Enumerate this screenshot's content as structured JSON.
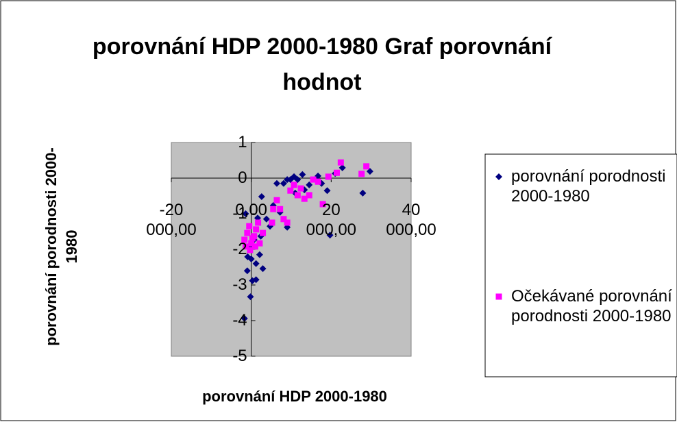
{
  "chart_data": {
    "type": "scatter",
    "title": "porovnání HDP 2000-1980 Graf porovnání hodnot",
    "x_label": "porovnání HDP 2000-1980",
    "y_label": "porovnání porodnosti 2000-1980",
    "xlim": [
      -20000,
      40000
    ],
    "xticks": [
      {
        "value": -20000,
        "label": "-20 000,00"
      },
      {
        "value": 0,
        "label": "0,00"
      },
      {
        "value": 20000,
        "label": "20 000,00"
      },
      {
        "value": 40000,
        "label": "40 000,00"
      }
    ],
    "ylim": [
      -5,
      1
    ],
    "yticks": [
      1,
      0,
      -1,
      -2,
      -3,
      -4,
      -5
    ],
    "legend": "right",
    "series": [
      {
        "name": "porovnání porodnosti 2000-1980",
        "color": "#000080",
        "marker": "diamond",
        "x": [
          -1700,
          -200,
          300,
          -1400,
          -900,
          0,
          1200,
          1200,
          2100,
          2400,
          2900,
          2600,
          1600,
          4700,
          6400,
          8100,
          9000,
          9800,
          10700,
          11600,
          12800,
          11000,
          13300,
          14500,
          16700,
          17600,
          19000,
          19700,
          21000,
          22800,
          27900,
          29700,
          7200,
          9000,
          5500,
          3800,
          700,
          -300,
          -1000
        ],
        "values": [
          -3.94,
          -3.33,
          -2.88,
          -1.0,
          -2.21,
          -2.27,
          -2.4,
          -2.85,
          -2.15,
          -1.63,
          -2.54,
          -0.52,
          -1.12,
          -1.35,
          -0.15,
          -0.15,
          -0.04,
          -0.04,
          0.04,
          -0.04,
          0.1,
          -0.42,
          -0.33,
          -0.19,
          0.06,
          -0.15,
          -0.35,
          -1.6,
          0.13,
          0.29,
          -0.42,
          0.19,
          -0.96,
          -1.38,
          -0.77,
          -1.15,
          -1.73,
          -1.92,
          -2.6
        ]
      },
      {
        "name": "Očekávané porovnání porodnosti 2000-1980",
        "color": "#ff00ff",
        "marker": "square",
        "x": [
          -1700,
          -1000,
          -500,
          0,
          700,
          1200,
          1700,
          2100,
          2900,
          5200,
          6400,
          7200,
          8100,
          9000,
          9800,
          10700,
          11600,
          12400,
          13300,
          14500,
          15500,
          16700,
          17900,
          19300,
          21400,
          22400,
          27600,
          28800,
          5500,
          -1400,
          -300,
          300,
          1000
        ],
        "values": [
          -1.73,
          -1.54,
          -1.35,
          -1.83,
          -1.63,
          -1.44,
          -1.25,
          -1.83,
          -1.54,
          -1.25,
          -0.62,
          -0.87,
          -1.15,
          -1.25,
          -0.35,
          -0.19,
          -0.48,
          -0.29,
          -0.58,
          -0.48,
          -0.04,
          -0.1,
          -0.73,
          0.04,
          0.15,
          0.44,
          0.12,
          0.33,
          -0.87,
          -1.92,
          -2.02,
          -1.69,
          -1.92
        ]
      }
    ]
  }
}
